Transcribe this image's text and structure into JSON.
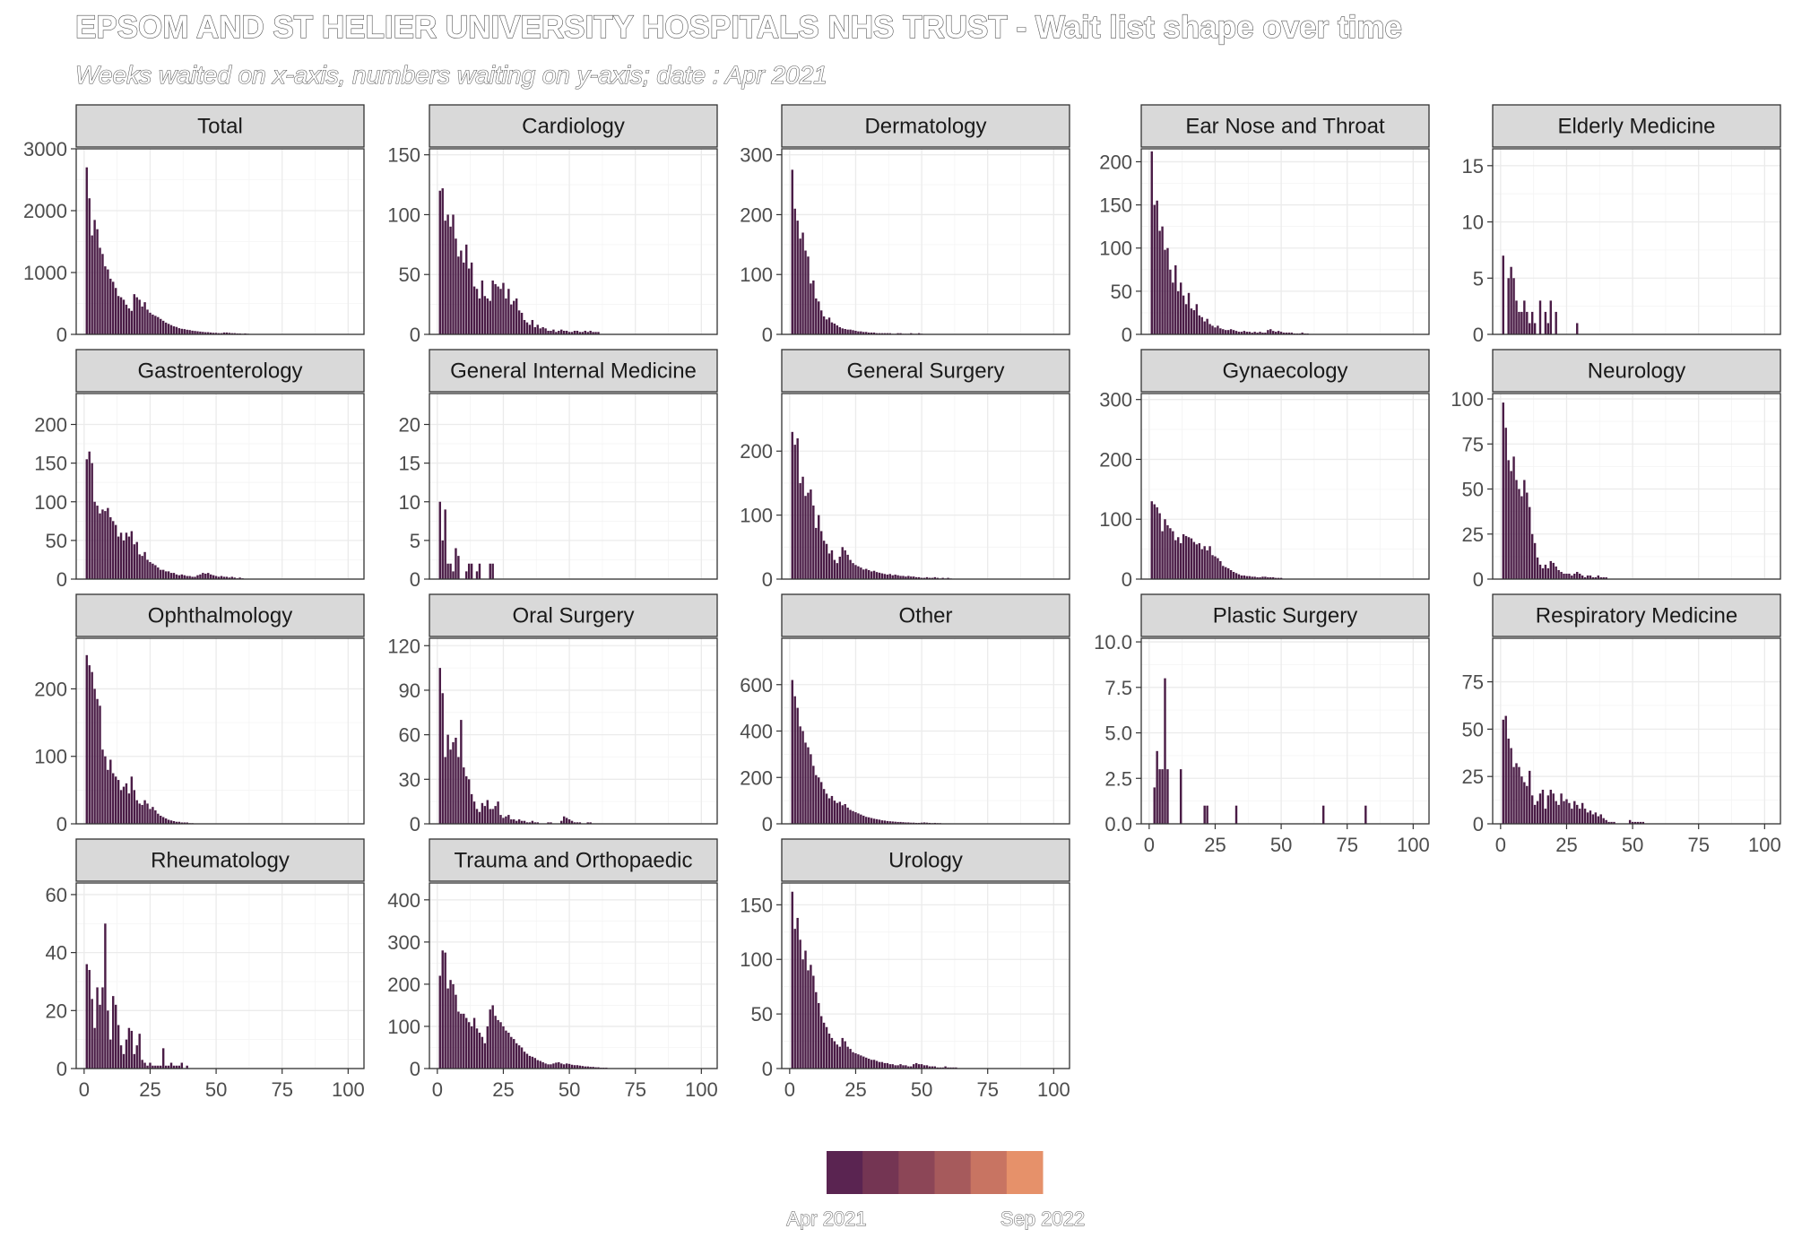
{
  "title": "EPSOM AND ST HELIER UNIVERSITY HOSPITALS NHS TRUST - Wait list shape over time",
  "subtitle": "Weeks waited on x-axis, numbers waiting on y-axis; date : Apr 2021",
  "legend": {
    "labels": [
      "Apr 2021",
      "Sep 2022"
    ],
    "colors": [
      "#5a2451",
      "#743553",
      "#8c4657",
      "#a65a5c",
      "#c87462",
      "#e6916a"
    ]
  },
  "bar_color": "#4a1c46",
  "chart_data": {
    "type": "bar",
    "x_ticks": [
      0,
      25,
      50,
      75,
      100
    ],
    "xlim": [
      -3,
      106
    ],
    "panels": [
      {
        "name": "Total",
        "yticks": [
          0,
          1000,
          2000,
          3000
        ],
        "ylim": [
          0,
          3000
        ],
        "values": [
          2700,
          2200,
          1600,
          1850,
          1700,
          1400,
          1300,
          1100,
          1050,
          900,
          850,
          750,
          620,
          600,
          560,
          480,
          420,
          380,
          650,
          600,
          560,
          450,
          520,
          400,
          350,
          320,
          300,
          280,
          250,
          220,
          190,
          170,
          150,
          130,
          120,
          100,
          90,
          85,
          75,
          70,
          60,
          55,
          50,
          45,
          40,
          35,
          35,
          30,
          25,
          25,
          20,
          20,
          30,
          30,
          25,
          20,
          20,
          15,
          15,
          10,
          15,
          10
        ]
      },
      {
        "name": "Cardiology",
        "yticks": [
          0,
          50,
          100,
          150
        ],
        "ylim": [
          0,
          155
        ],
        "values": [
          120,
          122,
          95,
          100,
          90,
          100,
          80,
          65,
          70,
          60,
          75,
          55,
          60,
          40,
          38,
          30,
          45,
          32,
          30,
          28,
          45,
          42,
          40,
          38,
          43,
          30,
          38,
          25,
          28,
          30,
          20,
          18,
          12,
          10,
          8,
          12,
          6,
          8,
          5,
          6,
          5,
          3,
          3,
          4,
          2,
          3,
          4,
          3,
          3,
          2,
          2,
          3,
          3,
          2,
          2,
          3,
          2,
          3,
          2,
          2,
          2
        ]
      },
      {
        "name": "Dermatology",
        "yticks": [
          0,
          100,
          200,
          300
        ],
        "ylim": [
          0,
          310
        ],
        "values": [
          275,
          210,
          190,
          160,
          170,
          140,
          130,
          85,
          90,
          60,
          55,
          40,
          30,
          25,
          28,
          20,
          18,
          15,
          12,
          10,
          9,
          8,
          8,
          7,
          6,
          5,
          5,
          4,
          4,
          3,
          3,
          3,
          2,
          2,
          2,
          2,
          2,
          2,
          1,
          1,
          2,
          2,
          1,
          1,
          1,
          2,
          1,
          1,
          2,
          1
        ]
      },
      {
        "name": "Ear Nose and Throat",
        "yticks": [
          0,
          50,
          100,
          150,
          200
        ],
        "ylim": [
          0,
          215
        ],
        "values": [
          212,
          150,
          155,
          120,
          125,
          98,
          100,
          75,
          60,
          80,
          50,
          60,
          45,
          35,
          48,
          30,
          28,
          35,
          22,
          20,
          15,
          18,
          12,
          10,
          8,
          10,
          7,
          6,
          5,
          5,
          6,
          5,
          4,
          3,
          3,
          4,
          3,
          3,
          2,
          3,
          2,
          3,
          2,
          2,
          5,
          6,
          4,
          3,
          4,
          3,
          2,
          2,
          2,
          2,
          1,
          1,
          1,
          2,
          1,
          1
        ]
      },
      {
        "name": "Elderly Medicine",
        "yticks": [
          0,
          5,
          10,
          15
        ],
        "ylim": [
          0,
          16.5
        ],
        "values": [
          7,
          0,
          5,
          6,
          5,
          3,
          2,
          2,
          3,
          2,
          1,
          2,
          1,
          0,
          3,
          0,
          2,
          1,
          3,
          0,
          2,
          0,
          0,
          0,
          0,
          0,
          0,
          0,
          1
        ]
      },
      {
        "name": "Gastroenterology",
        "yticks": [
          0,
          50,
          100,
          150,
          200
        ],
        "ylim": [
          0,
          240
        ],
        "values": [
          155,
          165,
          150,
          100,
          95,
          85,
          90,
          88,
          92,
          80,
          75,
          70,
          55,
          60,
          50,
          60,
          55,
          62,
          45,
          48,
          32,
          30,
          35,
          25,
          22,
          20,
          18,
          15,
          12,
          12,
          10,
          10,
          8,
          8,
          6,
          5,
          6,
          5,
          4,
          4,
          3,
          3,
          5,
          6,
          8,
          7,
          8,
          6,
          5,
          4,
          3,
          4,
          3,
          3,
          2,
          3,
          2,
          1,
          2,
          1
        ]
      },
      {
        "name": "General Internal Medicine",
        "yticks": [
          0,
          5,
          10,
          15,
          20
        ],
        "ylim": [
          0,
          24
        ],
        "values": [
          10,
          5,
          9,
          2,
          2,
          1,
          4,
          3,
          0,
          0,
          1,
          2,
          2,
          0,
          1,
          2,
          0,
          0,
          0,
          2,
          2
        ]
      },
      {
        "name": "General Surgery",
        "yticks": [
          0,
          100,
          200
        ],
        "ylim": [
          0,
          290
        ],
        "values": [
          230,
          210,
          220,
          150,
          160,
          130,
          135,
          140,
          115,
          80,
          100,
          75,
          60,
          55,
          40,
          45,
          30,
          25,
          35,
          50,
          45,
          38,
          30,
          25,
          22,
          20,
          18,
          15,
          16,
          14,
          12,
          13,
          11,
          10,
          9,
          8,
          7,
          8,
          6,
          7,
          6,
          5,
          5,
          4,
          5,
          4,
          4,
          3,
          3,
          2,
          2,
          3,
          2,
          2,
          3,
          2,
          1,
          2,
          1,
          2,
          1
        ]
      },
      {
        "name": "Gynaecology",
        "yticks": [
          0,
          100,
          200,
          300
        ],
        "ylim": [
          0,
          310
        ],
        "values": [
          130,
          125,
          120,
          110,
          80,
          100,
          90,
          85,
          80,
          65,
          70,
          60,
          75,
          72,
          70,
          68,
          62,
          58,
          60,
          50,
          55,
          48,
          55,
          40,
          38,
          35,
          30,
          22,
          20,
          18,
          15,
          12,
          10,
          8,
          6,
          6,
          5,
          5,
          4,
          4,
          3,
          3,
          4,
          4,
          3,
          3,
          3,
          2,
          2,
          2
        ]
      },
      {
        "name": "Neurology",
        "yticks": [
          0,
          25,
          50,
          75,
          100
        ],
        "ylim": [
          0,
          103
        ],
        "values": [
          98,
          84,
          66,
          60,
          68,
          55,
          50,
          46,
          55,
          48,
          40,
          25,
          20,
          12,
          8,
          6,
          8,
          6,
          10,
          9,
          7,
          5,
          4,
          3,
          3,
          3,
          2,
          3,
          4,
          3,
          2,
          1,
          2,
          2,
          1,
          1,
          2,
          1,
          1,
          1
        ]
      },
      {
        "name": "Ophthalmology",
        "yticks": [
          0,
          100,
          200
        ],
        "ylim": [
          0,
          275
        ],
        "values": [
          250,
          235,
          225,
          200,
          185,
          175,
          110,
          100,
          80,
          95,
          75,
          70,
          65,
          50,
          55,
          60,
          45,
          70,
          50,
          35,
          30,
          28,
          35,
          30,
          22,
          25,
          20,
          15,
          12,
          10,
          8,
          6,
          5,
          4,
          3,
          3,
          2,
          2,
          2,
          1,
          1
        ]
      },
      {
        "name": "Oral Surgery",
        "yticks": [
          0,
          30,
          60,
          90,
          120
        ],
        "ylim": [
          0,
          125
        ],
        "values": [
          105,
          88,
          45,
          60,
          50,
          55,
          58,
          45,
          70,
          38,
          32,
          30,
          20,
          15,
          10,
          8,
          14,
          12,
          16,
          10,
          10,
          12,
          15,
          6,
          4,
          5,
          6,
          3,
          3,
          2,
          3,
          2,
          2,
          1,
          1,
          2,
          1,
          1,
          0,
          0,
          0,
          1,
          1,
          0,
          0,
          0,
          2,
          5,
          4,
          3,
          2,
          1,
          1,
          1,
          0,
          0,
          1,
          1
        ]
      },
      {
        "name": "Other",
        "yticks": [
          0,
          200,
          400,
          600
        ],
        "ylim": [
          0,
          800
        ],
        "values": [
          620,
          550,
          500,
          420,
          400,
          350,
          330,
          300,
          250,
          210,
          200,
          180,
          150,
          130,
          110,
          120,
          100,
          90,
          95,
          80,
          85,
          70,
          60,
          55,
          50,
          45,
          40,
          35,
          30,
          28,
          25,
          22,
          20,
          18,
          15,
          14,
          12,
          11,
          10,
          9,
          8,
          8,
          7,
          6,
          6,
          5,
          5,
          4,
          4,
          5,
          6,
          5,
          4,
          3,
          4,
          3,
          3,
          2,
          2,
          2,
          2,
          1,
          1,
          1,
          1
        ]
      },
      {
        "name": "Plastic Surgery",
        "yticks": [
          0.0,
          2.5,
          5.0,
          7.5,
          10.0
        ],
        "ylim": [
          0,
          10.2
        ],
        "sparse": [
          [
            2,
            2
          ],
          [
            3,
            4
          ],
          [
            4,
            3
          ],
          [
            5,
            3
          ],
          [
            6,
            8
          ],
          [
            7,
            3
          ],
          [
            12,
            3
          ],
          [
            21,
            1
          ],
          [
            22,
            1
          ],
          [
            33,
            1
          ],
          [
            66,
            1
          ],
          [
            82,
            1
          ]
        ]
      },
      {
        "name": "Respiratory Medicine",
        "yticks": [
          0,
          25,
          50,
          75
        ],
        "ylim": [
          0,
          98
        ],
        "values": [
          55,
          57,
          45,
          40,
          30,
          32,
          30,
          25,
          22,
          20,
          28,
          15,
          10,
          12,
          16,
          18,
          8,
          15,
          18,
          16,
          12,
          10,
          16,
          12,
          13,
          11,
          8,
          12,
          10,
          8,
          11,
          8,
          6,
          7,
          5,
          6,
          4,
          5,
          3,
          2,
          1,
          1,
          1,
          0,
          0,
          0,
          0,
          0,
          2,
          1,
          1,
          1,
          1,
          1
        ]
      },
      {
        "name": "Rheumatology",
        "yticks": [
          0,
          20,
          40,
          60
        ],
        "ylim": [
          0,
          64
        ],
        "values": [
          36,
          34,
          24,
          14,
          28,
          22,
          28,
          50,
          20,
          10,
          25,
          22,
          15,
          8,
          5,
          10,
          14,
          13,
          5,
          8,
          12,
          3,
          2,
          1,
          2,
          1,
          1,
          1,
          1,
          7,
          1,
          1,
          2,
          1,
          1,
          1,
          2,
          0,
          1
        ]
      },
      {
        "name": "Trauma and Orthopaedic",
        "yticks": [
          0,
          100,
          200,
          300,
          400
        ],
        "ylim": [
          0,
          440
        ],
        "values": [
          220,
          280,
          275,
          190,
          210,
          200,
          175,
          135,
          130,
          130,
          120,
          110,
          100,
          120,
          95,
          85,
          75,
          60,
          100,
          140,
          150,
          125,
          115,
          110,
          100,
          90,
          85,
          75,
          70,
          60,
          55,
          50,
          40,
          35,
          30,
          28,
          25,
          20,
          18,
          15,
          12,
          10,
          10,
          12,
          14,
          15,
          12,
          10,
          12,
          11,
          9,
          8,
          8,
          7,
          6,
          5,
          5,
          4,
          4,
          3,
          3,
          2,
          2,
          2
        ]
      },
      {
        "name": "Urology",
        "yticks": [
          0,
          50,
          100,
          150
        ],
        "ylim": [
          0,
          170
        ],
        "values": [
          162,
          128,
          138,
          118,
          100,
          108,
          90,
          95,
          85,
          70,
          60,
          48,
          42,
          38,
          32,
          28,
          25,
          22,
          20,
          28,
          25,
          20,
          18,
          15,
          14,
          13,
          12,
          11,
          10,
          9,
          8,
          8,
          7,
          6,
          6,
          5,
          5,
          4,
          4,
          3,
          3,
          4,
          3,
          3,
          2,
          2,
          4,
          5,
          4,
          4,
          3,
          3,
          2,
          2,
          2,
          1,
          1,
          1,
          2,
          1,
          1,
          1,
          1
        ]
      }
    ]
  }
}
